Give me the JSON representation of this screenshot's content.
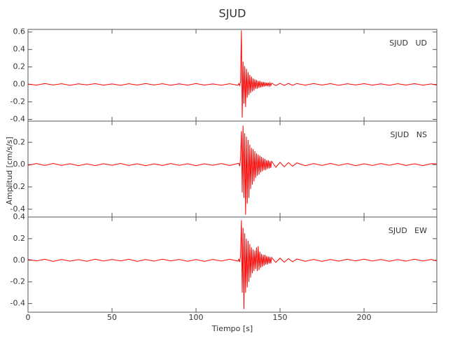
{
  "chart_data": [
    {
      "type": "line",
      "title": "SJUD",
      "label": "SJUD   UD",
      "x": [
        0,
        5,
        10,
        15,
        20,
        25,
        30,
        35,
        40,
        45,
        50,
        55,
        60,
        65,
        70,
        75,
        80,
        85,
        90,
        95,
        100,
        105,
        110,
        115,
        120,
        125,
        125.5,
        126,
        126.5,
        127,
        127.5,
        128,
        128.5,
        129,
        129.5,
        130,
        130.5,
        131,
        131.5,
        132,
        132.5,
        133,
        133.5,
        134,
        134.5,
        135,
        135.5,
        136,
        136.5,
        137,
        137.5,
        138,
        138.5,
        139,
        139.5,
        140,
        140.5,
        141,
        141.5,
        142,
        142.5,
        143,
        143.5,
        144,
        144.5,
        145,
        147.5,
        150,
        152.5,
        155,
        157.5,
        160,
        165,
        170,
        175,
        180,
        185,
        190,
        195,
        200,
        205,
        210,
        215,
        220,
        225,
        230,
        235,
        240,
        243
      ],
      "series": [
        {
          "name": "UD",
          "color": "#ff0000",
          "values": [
            0.005,
            -0.008,
            0.01,
            -0.006,
            0.008,
            -0.01,
            0.007,
            -0.005,
            0.009,
            -0.008,
            0.006,
            -0.01,
            0.008,
            -0.007,
            0.01,
            -0.006,
            0.008,
            -0.009,
            0.007,
            -0.008,
            0.01,
            -0.007,
            0.006,
            -0.009,
            0.008,
            -0.01,
            0.01,
            -0.012,
            0.03,
            0.62,
            -0.38,
            0.26,
            -0.22,
            0.21,
            -0.26,
            0.18,
            -0.15,
            0.14,
            -0.12,
            0.11,
            -0.1,
            0.09,
            -0.08,
            0.07,
            -0.07,
            0.06,
            -0.05,
            0.05,
            -0.05,
            0.04,
            -0.04,
            0.04,
            -0.035,
            0.03,
            -0.03,
            0.03,
            -0.025,
            0.025,
            -0.02,
            0.02,
            -0.02,
            0.02,
            -0.018,
            0.018,
            -0.015,
            0.015,
            -0.014,
            0.012,
            -0.012,
            0.011,
            -0.01,
            0.01,
            -0.008,
            0.01,
            -0.007,
            0.009,
            -0.01,
            0.008,
            -0.006,
            0.009,
            -0.008,
            0.007,
            -0.01,
            0.008,
            -0.007,
            0.009,
            -0.008,
            0.006,
            -0.007
          ]
        }
      ],
      "xlim": [
        0,
        243.3
      ],
      "xticks": [
        0,
        50,
        100,
        150,
        200
      ],
      "ylim": [
        -0.42,
        0.63
      ],
      "yticks": [
        -0.4,
        -0.2,
        {
          "value": 0,
          "label": "0.0"
        },
        0.2,
        0.4,
        0.6
      ]
    },
    {
      "type": "line",
      "label": "SJUD   NS",
      "y_label": "Amplitud [cm/s/s]",
      "x": [
        0,
        5,
        10,
        15,
        20,
        25,
        30,
        35,
        40,
        45,
        50,
        55,
        60,
        65,
        70,
        75,
        80,
        85,
        90,
        95,
        100,
        105,
        110,
        115,
        120,
        125,
        125.5,
        126,
        126.5,
        127,
        127.5,
        128,
        128.5,
        129,
        129.5,
        130,
        130.5,
        131,
        131.5,
        132,
        132.5,
        133,
        133.5,
        134,
        134.5,
        135,
        135.5,
        136,
        136.5,
        137,
        137.5,
        138,
        138.5,
        139,
        139.5,
        140,
        140.5,
        141,
        141.5,
        142,
        142.5,
        143,
        143.5,
        144,
        144.5,
        145,
        147.5,
        150,
        152.5,
        155,
        157.5,
        160,
        165,
        170,
        175,
        180,
        185,
        190,
        195,
        200,
        205,
        210,
        215,
        220,
        225,
        230,
        235,
        240,
        243
      ],
      "series": [
        {
          "name": "NS",
          "color": "#ff0000",
          "values": [
            -0.006,
            0.009,
            -0.008,
            0.01,
            -0.007,
            0.008,
            -0.01,
            0.006,
            -0.009,
            0.008,
            -0.006,
            0.01,
            -0.008,
            0.007,
            -0.01,
            0.006,
            -0.008,
            0.009,
            -0.007,
            0.008,
            -0.01,
            0.007,
            -0.006,
            0.009,
            -0.008,
            0.01,
            0.01,
            -0.015,
            0.05,
            0.3,
            -0.25,
            0.35,
            -0.3,
            0.28,
            -0.45,
            0.25,
            -0.35,
            0.22,
            -0.3,
            0.18,
            -0.22,
            0.15,
            -0.18,
            0.14,
            -0.15,
            0.12,
            -0.12,
            0.1,
            -0.1,
            0.09,
            -0.09,
            0.08,
            -0.07,
            0.07,
            -0.06,
            0.06,
            -0.05,
            0.05,
            -0.05,
            0.04,
            -0.04,
            0.04,
            -0.035,
            0.03,
            -0.03,
            0.03,
            -0.025,
            0.02,
            -0.02,
            0.018,
            -0.015,
            0.015,
            -0.01,
            0.009,
            -0.008,
            0.01,
            -0.007,
            0.009,
            -0.01,
            0.007,
            -0.008,
            0.009,
            -0.006,
            0.01,
            -0.008,
            0.007,
            -0.009,
            0.008,
            0.006
          ]
        }
      ],
      "xlim": [
        0,
        243.3
      ],
      "xticks": [
        0,
        50,
        100,
        150,
        200
      ],
      "ylim": [
        -0.47,
        0.39
      ],
      "yticks": [
        -0.4,
        -0.2,
        {
          "value": 0,
          "label": "0.0"
        },
        0.2
      ]
    },
    {
      "type": "line",
      "label": "SJUD   EW",
      "x_label": "Tiempo [s]",
      "x": [
        0,
        5,
        10,
        15,
        20,
        25,
        30,
        35,
        40,
        45,
        50,
        55,
        60,
        65,
        70,
        75,
        80,
        85,
        90,
        95,
        100,
        105,
        110,
        115,
        120,
        125,
        125.5,
        126,
        126.5,
        127,
        127.5,
        128,
        128.5,
        129,
        129.5,
        130,
        130.5,
        131,
        131.5,
        132,
        132.5,
        133,
        133.5,
        134,
        134.5,
        135,
        135.5,
        136,
        136.5,
        137,
        137.5,
        138,
        138.5,
        139,
        139.5,
        140,
        140.5,
        141,
        141.5,
        142,
        142.5,
        143,
        143.5,
        144,
        144.5,
        145,
        147.5,
        150,
        152.5,
        155,
        157.5,
        160,
        165,
        170,
        175,
        180,
        185,
        190,
        195,
        200,
        205,
        210,
        215,
        220,
        225,
        230,
        235,
        240,
        243
      ],
      "series": [
        {
          "name": "EW",
          "color": "#ff0000",
          "values": [
            0.008,
            -0.006,
            0.009,
            -0.01,
            0.007,
            -0.008,
            0.006,
            -0.009,
            0.01,
            -0.007,
            0.008,
            -0.006,
            0.009,
            -0.01,
            0.007,
            -0.008,
            0.01,
            -0.006,
            0.008,
            -0.009,
            0.007,
            -0.01,
            0.008,
            -0.007,
            0.009,
            -0.008,
            0.01,
            -0.015,
            0.04,
            0.37,
            -0.3,
            0.3,
            -0.45,
            0.25,
            -0.3,
            0.2,
            -0.25,
            0.18,
            -0.2,
            0.15,
            -0.16,
            0.12,
            -0.12,
            0.1,
            -0.1,
            0.09,
            -0.08,
            0.12,
            -0.1,
            0.13,
            -0.09,
            0.08,
            -0.07,
            0.06,
            -0.06,
            0.05,
            -0.05,
            0.05,
            -0.04,
            0.04,
            -0.04,
            0.035,
            -0.03,
            0.03,
            -0.03,
            0.025,
            -0.02,
            0.02,
            -0.018,
            0.015,
            -0.014,
            0.012,
            -0.009,
            0.008,
            -0.01,
            0.007,
            -0.008,
            0.009,
            -0.006,
            0.01,
            -0.007,
            0.008,
            -0.009,
            0.006,
            -0.008,
            0.01,
            -0.007,
            0.008,
            -0.006
          ]
        }
      ],
      "xlim": [
        0,
        243.3
      ],
      "xticks": [
        0,
        50,
        100,
        150,
        200
      ],
      "ylim": [
        -0.48,
        0.4
      ],
      "yticks": [
        -0.4,
        -0.2,
        {
          "value": 0,
          "label": "0.0"
        },
        0.2,
        0.4
      ]
    }
  ]
}
